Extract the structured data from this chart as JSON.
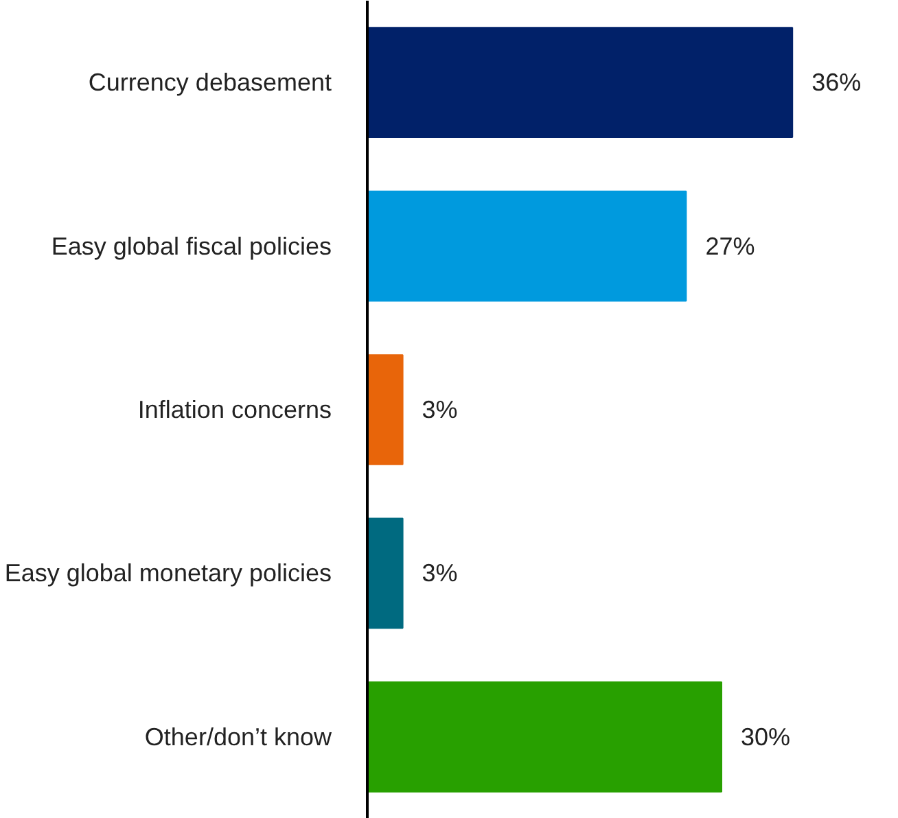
{
  "chart_data": {
    "type": "bar",
    "orientation": "horizontal",
    "categories": [
      "Currency debasement",
      "Easy global fiscal policies",
      "Inflation concerns",
      "Easy global monetary policies",
      "Other/don’t know"
    ],
    "values": [
      36,
      27,
      3,
      3,
      30
    ],
    "colors": [
      "#012169",
      "#009ade",
      "#e8650a",
      "#006a80",
      "#28a000"
    ],
    "value_labels": [
      "36%",
      "27%",
      "3%",
      "3%",
      "30%"
    ],
    "grid": false
  }
}
